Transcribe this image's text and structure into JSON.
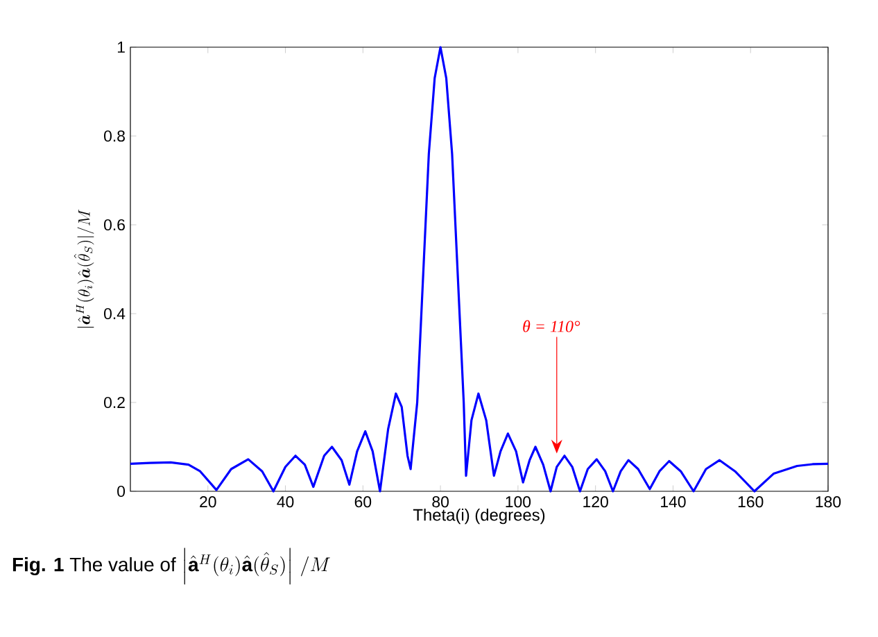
{
  "chart_data": {
    "type": "line",
    "xlabel": "Theta(i) (degrees)",
    "ylabel": "|\\hat{\\boldsymbol{a}}^H(\\theta_i)\\hat{\\boldsymbol{a}}(\\hat{\\theta}_S)|/M",
    "annotations": [
      {
        "text": "θ = 110°",
        "x": 110,
        "y": 0.085
      },
      "**Fig. 1** The value of",
      "\\left|\\hat{\\mathbf{a}}^H(\\theta_i)\\hat{\\mathbf{a}}(\\hat{\\theta}_S)\\right|\\,/M"
    ],
    "series": [
      {
        "color": "#0000ff",
        "x": [
          0,
          5,
          10.4,
          15,
          18,
          22.2,
          26,
          30.4,
          34,
          36.9,
          40,
          42.6,
          45,
          47.2,
          50,
          52,
          54.5,
          56.5,
          58.5,
          60.6,
          62.5,
          64.4,
          66.5,
          68.5,
          70,
          71.5,
          72.3,
          74,
          75.5,
          77,
          78.5,
          80,
          81.5,
          83,
          84.5,
          86,
          86.6,
          88,
          89.8,
          91.8,
          93.8,
          95.5,
          97.4,
          99.5,
          101.3,
          103,
          104.5,
          106.5,
          108.4,
          110,
          112,
          114,
          116,
          118,
          120.3,
          122.5,
          124.5,
          126.5,
          128.5,
          131,
          134,
          136.5,
          139,
          142,
          145.3,
          148.5,
          152,
          156,
          161,
          166,
          172,
          176,
          180
        ],
        "values": [
          0.062,
          0.064,
          0.065,
          0.06,
          0.045,
          0.003,
          0.05,
          0.072,
          0.045,
          0.0,
          0.055,
          0.08,
          0.06,
          0.01,
          0.08,
          0.1,
          0.07,
          0.015,
          0.09,
          0.135,
          0.09,
          0.0,
          0.14,
          0.22,
          0.19,
          0.08,
          0.05,
          0.2,
          0.48,
          0.76,
          0.93,
          1.0,
          0.93,
          0.76,
          0.48,
          0.2,
          0.035,
          0.16,
          0.22,
          0.16,
          0.035,
          0.09,
          0.13,
          0.09,
          0.02,
          0.07,
          0.1,
          0.06,
          0.0,
          0.055,
          0.08,
          0.055,
          0.0,
          0.05,
          0.072,
          0.045,
          0.0,
          0.045,
          0.07,
          0.05,
          0.005,
          0.045,
          0.068,
          0.045,
          0.0,
          0.05,
          0.07,
          0.045,
          0.0,
          0.04,
          0.057,
          0.061,
          0.062
        ]
      }
    ],
    "xlim": [
      0,
      180
    ],
    "xticks": [
      20,
      40,
      60,
      80,
      100,
      120,
      140,
      160,
      180
    ],
    "ylim": [
      0,
      1
    ],
    "yticks": [
      0,
      0.2,
      0.4,
      0.6,
      0.8,
      1
    ]
  }
}
